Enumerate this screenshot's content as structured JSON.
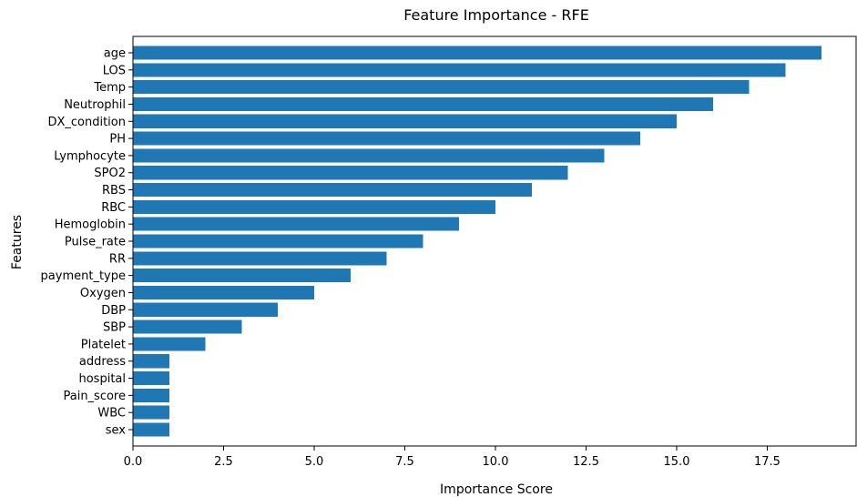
{
  "chart_data": {
    "type": "bar",
    "orientation": "horizontal",
    "title": "Feature Importance - RFE",
    "xlabel": "Importance Score",
    "ylabel": "Features",
    "xlim": [
      0,
      19.95
    ],
    "xticks": [
      0,
      2.5,
      5,
      7.5,
      10,
      12.5,
      15,
      17.5
    ],
    "xtick_labels": [
      "0.0",
      "2.5",
      "5.0",
      "7.5",
      "10.0",
      "12.5",
      "15.0",
      "17.5"
    ],
    "grid": false,
    "bar_color": "#1f77b4",
    "categories": [
      "age",
      "LOS",
      "Temp",
      "Neutrophil",
      "DX_condition",
      "PH",
      "Lymphocyte",
      "SPO2",
      "RBS",
      "RBC",
      "Hemoglobin",
      "Pulse_rate",
      "RR",
      "payment_type",
      "Oxygen",
      "DBP",
      "SBP",
      "Platelet",
      "address",
      "hospital",
      "Pain_score",
      "WBC",
      "sex"
    ],
    "values": [
      19,
      18,
      17,
      16,
      15,
      14,
      13,
      12,
      11,
      10,
      9,
      8,
      7,
      6,
      5,
      4,
      3,
      2,
      1,
      1,
      1,
      1,
      1
    ]
  }
}
